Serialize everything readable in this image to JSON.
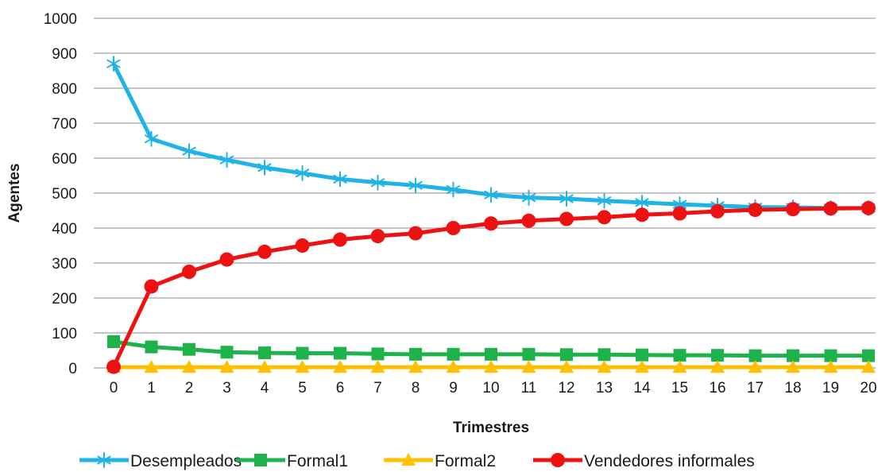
{
  "chart_data": {
    "type": "line",
    "title": "",
    "xlabel": "Trimestres",
    "ylabel": "Agentes",
    "x": [
      0,
      1,
      2,
      3,
      4,
      5,
      6,
      7,
      8,
      9,
      10,
      11,
      12,
      13,
      14,
      15,
      16,
      17,
      18,
      19,
      20
    ],
    "xlim": [
      0,
      20
    ],
    "ylim": [
      0,
      1000
    ],
    "yticks": [
      0,
      100,
      200,
      300,
      400,
      500,
      600,
      700,
      800,
      900,
      1000
    ],
    "grid": true,
    "legend_position": "bottom",
    "series": [
      {
        "name": "Desempleados",
        "color": "#1fb4e6",
        "marker": "asterisk",
        "values": [
          870,
          655,
          620,
          595,
          573,
          557,
          540,
          530,
          522,
          510,
          495,
          487,
          484,
          478,
          473,
          468,
          464,
          460,
          459,
          457,
          457
        ]
      },
      {
        "name": "Formal1",
        "color": "#1db24a",
        "marker": "square",
        "values": [
          75,
          60,
          53,
          45,
          43,
          42,
          42,
          40,
          39,
          39,
          39,
          39,
          38,
          38,
          37,
          36,
          36,
          35,
          35,
          35,
          35
        ]
      },
      {
        "name": "Formal2",
        "color": "#ffc000",
        "marker": "triangle",
        "values": [
          2,
          2,
          2,
          2,
          2,
          2,
          2,
          2,
          2,
          2,
          2,
          2,
          2,
          2,
          2,
          2,
          2,
          2,
          2,
          2,
          2
        ]
      },
      {
        "name": "Vendedores informales",
        "color": "#ee1111",
        "marker": "circle",
        "values": [
          3,
          233,
          275,
          310,
          332,
          350,
          367,
          377,
          385,
          400,
          413,
          421,
          426,
          431,
          438,
          442,
          448,
          452,
          454,
          456,
          457
        ]
      }
    ]
  }
}
